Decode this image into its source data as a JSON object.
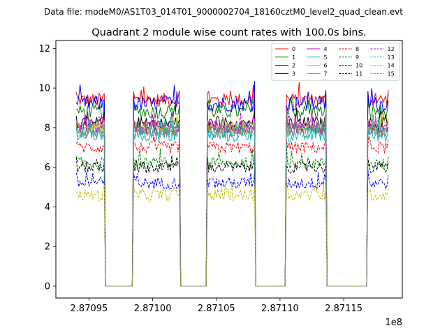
{
  "chart_data": {
    "type": "line",
    "suptitle": "Data file: modeM0/AS1T03_014T01_9000002704_18160cztM0_level2_quad_clean.evt",
    "title": "Quadrant 2 module wise count rates with 100.0s bins.",
    "xlabel": "",
    "ylabel": "",
    "x_scale_label": "1e8",
    "xlim": [
      2.870924,
      2.871196
    ],
    "ylim": [
      -0.6,
      12.4
    ],
    "x_ticks": [
      2.87095,
      2.871,
      2.87105,
      2.8711,
      2.87115
    ],
    "x_tick_labels": [
      "2.87095",
      "2.87100",
      "2.87105",
      "2.87110",
      "2.87115"
    ],
    "y_ticks": [
      0,
      2,
      4,
      6,
      8,
      10,
      12
    ],
    "y_tick_labels": [
      "0",
      "2",
      "4",
      "6",
      "8",
      "10",
      "12"
    ],
    "legend_position": "top-right",
    "legend_columns": 4,
    "segments": [
      {
        "start": 2.87094,
        "end": 2.870962
      },
      {
        "start": 2.870985,
        "end": 2.871021
      },
      {
        "start": 2.871043,
        "end": 2.87108
      },
      {
        "start": 2.871105,
        "end": 2.871136
      },
      {
        "start": 2.871169,
        "end": 2.871185
      }
    ],
    "gap_value": 0,
    "series": [
      {
        "name": "0",
        "color": "#ff0000",
        "dash": "solid",
        "level": 9.4,
        "noise": 0.35
      },
      {
        "name": "1",
        "color": "#008000",
        "dash": "solid",
        "level": 8.8,
        "noise": 0.35
      },
      {
        "name": "2",
        "color": "#0000ff",
        "dash": "solid",
        "level": 9.2,
        "noise": 0.4
      },
      {
        "name": "3",
        "color": "#000000",
        "dash": "solid",
        "level": 8.2,
        "noise": 0.35
      },
      {
        "name": "4",
        "color": "#bf00bf",
        "dash": "solid",
        "level": 8.0,
        "noise": 0.35
      },
      {
        "name": "5",
        "color": "#00bfbf",
        "dash": "solid",
        "level": 7.6,
        "noise": 0.35
      },
      {
        "name": "6",
        "color": "#bfbf00",
        "dash": "solid",
        "level": 8.0,
        "noise": 0.35
      },
      {
        "name": "7",
        "color": "#808080",
        "dash": "solid",
        "level": 7.8,
        "noise": 0.35
      },
      {
        "name": "8",
        "color": "#ff0000",
        "dash": "dashed",
        "level": 7.0,
        "noise": 0.3
      },
      {
        "name": "9",
        "color": "#008000",
        "dash": "dashed",
        "level": 6.2,
        "noise": 0.3
      },
      {
        "name": "10",
        "color": "#0000ff",
        "dash": "dashed",
        "level": 5.2,
        "noise": 0.3
      },
      {
        "name": "11",
        "color": "#000000",
        "dash": "dashed",
        "level": 6.0,
        "noise": 0.3
      },
      {
        "name": "12",
        "color": "#bf00bf",
        "dash": "dashed",
        "level": 8.0,
        "noise": 0.3
      },
      {
        "name": "13",
        "color": "#00bfbf",
        "dash": "dashed",
        "level": 7.8,
        "noise": 0.3
      },
      {
        "name": "14",
        "color": "#bfbf00",
        "dash": "dashed",
        "level": 4.6,
        "noise": 0.3
      },
      {
        "name": "15",
        "color": "#808080",
        "dash": "dashed",
        "level": 7.9,
        "noise": 0.3
      }
    ]
  }
}
